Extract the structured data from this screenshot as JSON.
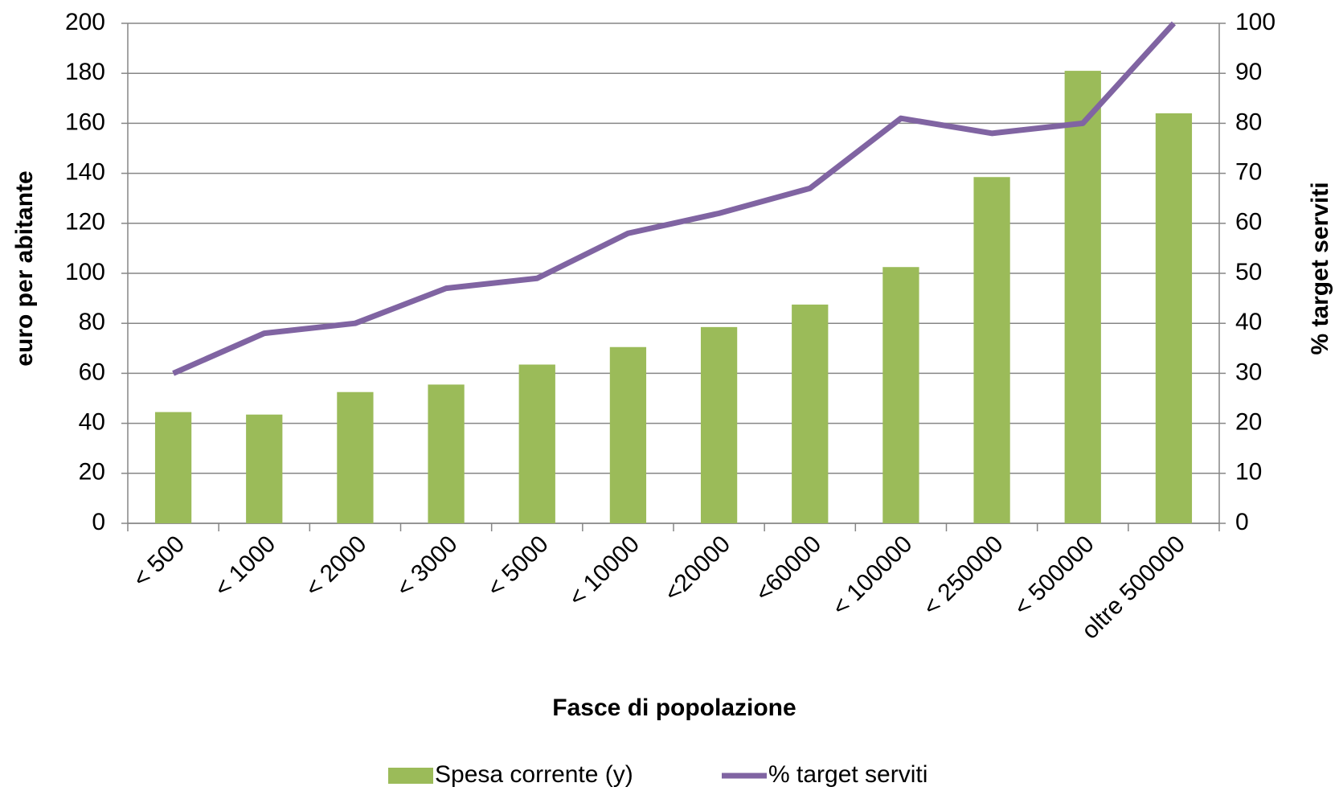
{
  "chart_data": {
    "type": "bar_line",
    "x_label": "Fasce di popolazione",
    "y_label": "euro per abitante",
    "y2_label": "% target serviti",
    "categories": [
      "< 500",
      "< 1000",
      "< 2000",
      "< 3000",
      "< 5000",
      "< 10000",
      "<20000",
      "<60000",
      "< 100000",
      "< 250000",
      "< 500000",
      "oltre 500000"
    ],
    "series": [
      {
        "name": "Spesa corrente (y)",
        "color": "#9bbb59",
        "type": "bar",
        "values": [
          44.5,
          43.5,
          52.5,
          55.5,
          63.5,
          70.5,
          78.5,
          87.5,
          102.5,
          138.5,
          181,
          164
        ]
      },
      {
        "name": "% target serviti",
        "color": "#8064a2",
        "type": "line",
        "axis": "y2",
        "values": [
          30,
          38,
          40,
          47,
          49,
          58,
          62,
          67,
          81,
          78,
          80,
          100
        ]
      }
    ],
    "ylim": [
      0,
      200
    ],
    "yticks": [
      0,
      20,
      40,
      60,
      80,
      100,
      120,
      140,
      160,
      180,
      200
    ],
    "y2lim": [
      0,
      100
    ],
    "y2ticks": [
      0,
      10,
      20,
      30,
      40,
      50,
      60,
      70,
      80,
      90,
      100
    ],
    "grid": true,
    "legend": "bottom"
  }
}
